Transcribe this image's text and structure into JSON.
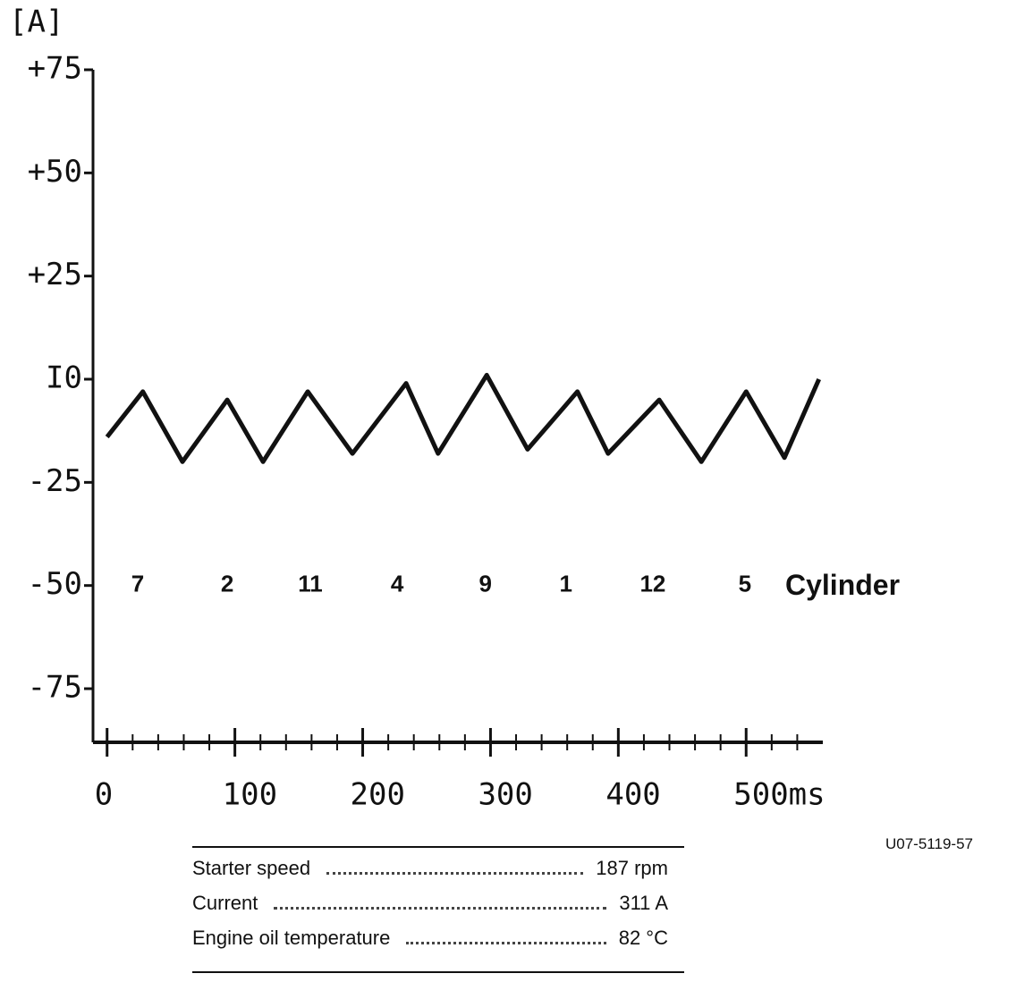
{
  "chart_data": {
    "type": "line",
    "y_unit": "[A]",
    "x": [
      0,
      28,
      59,
      94,
      122,
      157,
      192,
      234,
      259,
      297,
      329,
      368,
      392,
      432,
      465,
      500,
      530,
      557
    ],
    "values": [
      -14,
      -3,
      -20,
      -5,
      -20,
      -3,
      -18,
      -1,
      -18,
      1,
      -17,
      -3,
      -18,
      -5,
      -20,
      -3,
      -19,
      0
    ],
    "color": "#111111",
    "xlim": [
      -11,
      560
    ],
    "xticks": [
      0,
      100,
      200,
      300,
      400,
      {
        "value": 500,
        "label": "500ms"
      }
    ],
    "xminorticks": [
      20,
      40,
      60,
      80,
      120,
      140,
      160,
      180,
      220,
      240,
      260,
      280,
      320,
      340,
      360,
      380,
      420,
      440,
      460,
      480,
      520,
      540
    ],
    "ylim": [
      -88,
      75
    ],
    "yticks": [
      {
        "value": 75,
        "label": "+75"
      },
      {
        "value": 50,
        "label": "+50"
      },
      {
        "value": 25,
        "label": "+25"
      },
      {
        "value": 0,
        "label": "I0"
      },
      -25,
      -50,
      -75
    ],
    "annotations": {
      "labels": [
        "7",
        "2",
        "11",
        "4",
        "9",
        "1",
        "12",
        "5"
      ],
      "x": [
        24,
        94,
        159,
        227,
        296,
        359,
        427,
        499
      ],
      "y": -50,
      "title": "Cylinder"
    }
  },
  "info_table": {
    "rows": [
      [
        "Starter speed",
        "187 rpm"
      ],
      [
        "Current",
        "311 A"
      ],
      [
        "Engine oil temperature",
        "82 °C"
      ]
    ]
  },
  "figure_code": "U07-5119-57"
}
